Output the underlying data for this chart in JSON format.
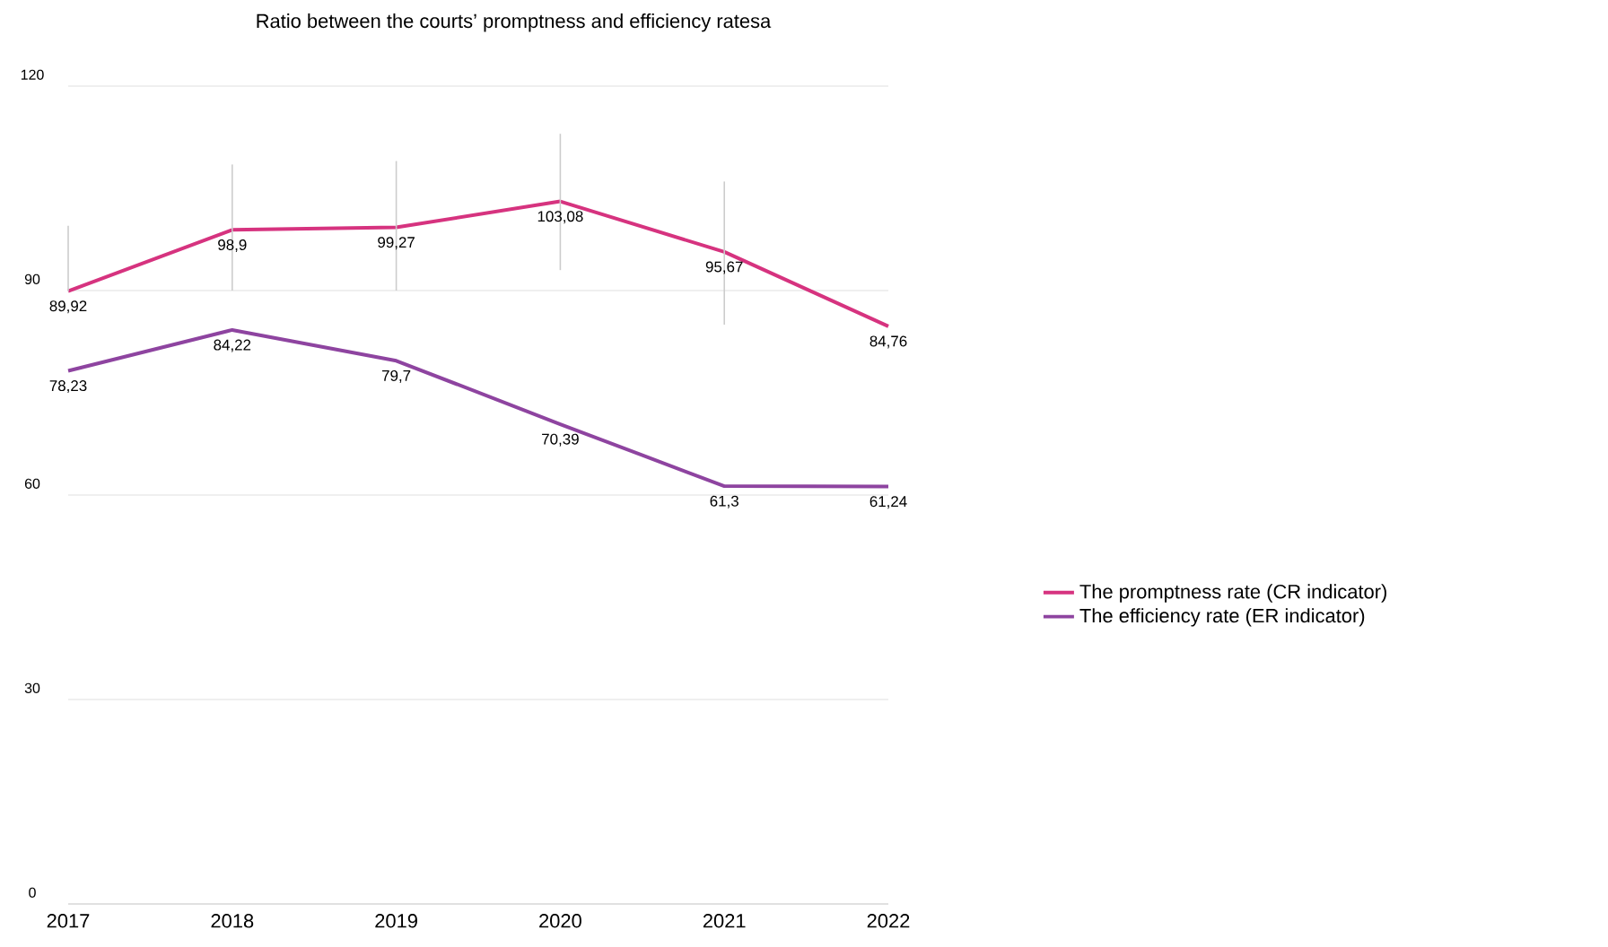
{
  "chart_data": {
    "type": "line",
    "title": "Ratio between the courts’ promptness and efficiency ratesa",
    "categories": [
      "2017",
      "2018",
      "2019",
      "2020",
      "2021",
      "2022"
    ],
    "series": [
      {
        "name": "The promptness rate (CR indicator)",
        "color": "#d6337f",
        "values": [
          89.92,
          98.9,
          99.27,
          103.08,
          95.67,
          84.76
        ],
        "value_labels": [
          "89,92",
          "98,9",
          "99,27",
          "103,08",
          "95,67",
          "84,76"
        ],
        "errors": [
          [
            90,
            99.5
          ],
          [
            90,
            108.5
          ],
          [
            90,
            109
          ],
          [
            93,
            113
          ],
          [
            85,
            106
          ],
          null
        ]
      },
      {
        "name": "The efficiency rate (ER indicator)",
        "color": "#8e44a0",
        "values": [
          78.23,
          84.22,
          79.7,
          70.39,
          61.3,
          61.24
        ],
        "value_labels": [
          "78,23",
          "84,22",
          "79,7",
          "70,39",
          "61,3",
          "61,24"
        ]
      }
    ],
    "ylim": [
      0,
      120
    ],
    "yticks": [
      0,
      30,
      60,
      90,
      120
    ],
    "grid": "y",
    "legend": "right",
    "marker": "none",
    "line_style": "solid"
  }
}
